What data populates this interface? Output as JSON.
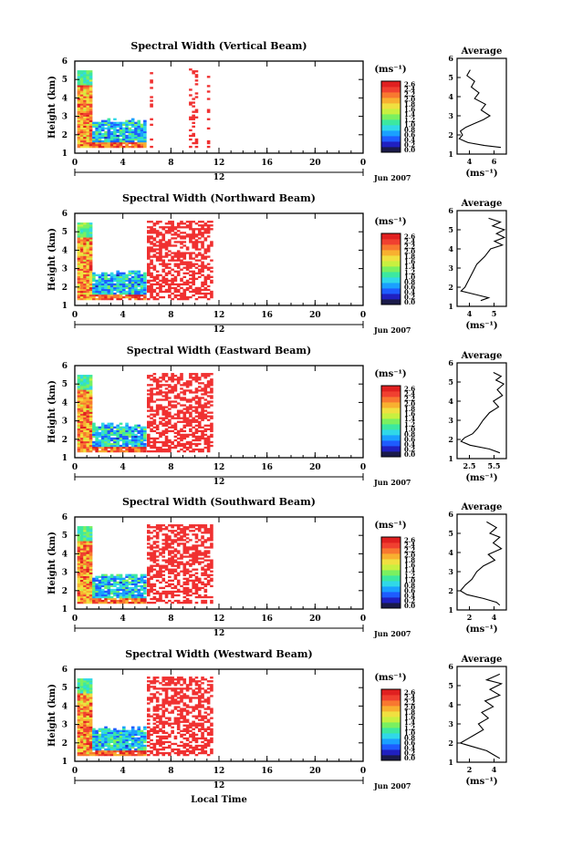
{
  "panels": [
    {
      "title": "Spectral Width (Vertical Beam)",
      "avg_ticks": [
        "4",
        "6"
      ],
      "avg_xlim": [
        3,
        7.5
      ]
    },
    {
      "title": "Spectral Width (Northward Beam)",
      "avg_ticks": [
        "4",
        "5"
      ],
      "avg_xlim": [
        3,
        5.5
      ]
    },
    {
      "title": "Spectral Width (Eastward Beam)",
      "avg_ticks": [
        "2.5",
        "5.5"
      ],
      "avg_xlim": [
        2,
        5.8
      ]
    },
    {
      "title": "Spectral Width (Southward Beam)",
      "avg_ticks": [
        "2",
        "4"
      ],
      "avg_xlim": [
        2,
        5
      ]
    },
    {
      "title": "Spectral Width (Westward Beam)",
      "avg_ticks": [
        "2",
        "4"
      ],
      "avg_xlim": [
        2,
        5
      ]
    }
  ],
  "ylabel": "Height (km)",
  "xlabel": "Local Time",
  "date_label": "Jun 2007",
  "noon_label": "12",
  "colorbar_unit": "(ms⁻¹)",
  "avg_unit": "(ms⁻¹)",
  "avg_title": "Average",
  "chart_data": {
    "type": "heatmap",
    "x_ticks": [
      "0",
      "4",
      "8",
      "12",
      "16",
      "20",
      "0"
    ],
    "y_ticks": [
      "1",
      "2",
      "3",
      "4",
      "5",
      "6"
    ],
    "xlim": [
      0,
      24
    ],
    "ylim": [
      1,
      6
    ],
    "colorbar_ticks": [
      "2.6",
      "2.4",
      "2.2",
      "2.0",
      "1.8",
      "1.6",
      "1.4",
      "1.2",
      "1.0",
      "0.8",
      "0.6",
      "0.4",
      "0.2",
      "0.0"
    ],
    "colorbar_range": [
      0,
      2.6
    ],
    "colorbar_colors": [
      "#1a1a4a",
      "#2020c0",
      "#1e5cff",
      "#1aa0ff",
      "#30d8e8",
      "#3ce8a0",
      "#7af060",
      "#c8f040",
      "#f0e040",
      "#f8b030",
      "#f87830",
      "#f04030",
      "#e02020"
    ],
    "average_profiles": [
      {
        "beam": "Vertical",
        "points": [
          [
            4.2,
            5.4
          ],
          [
            3.9,
            5.1
          ],
          [
            4.6,
            4.8
          ],
          [
            4.3,
            4.5
          ],
          [
            5.0,
            4.2
          ],
          [
            4.6,
            3.9
          ],
          [
            5.6,
            3.6
          ],
          [
            5.2,
            3.3
          ],
          [
            6.0,
            3.0
          ],
          [
            5.4,
            2.8
          ],
          [
            4.6,
            2.6
          ],
          [
            3.8,
            2.4
          ],
          [
            3.3,
            2.2
          ],
          [
            3.5,
            2.0
          ],
          [
            3.2,
            1.8
          ],
          [
            4.0,
            1.6
          ],
          [
            5.5,
            1.45
          ],
          [
            7.0,
            1.35
          ]
        ]
      },
      {
        "beam": "Northward",
        "points": [
          [
            4.6,
            5.6
          ],
          [
            5.2,
            5.4
          ],
          [
            4.8,
            5.2
          ],
          [
            5.4,
            5.0
          ],
          [
            5.0,
            4.8
          ],
          [
            5.4,
            4.6
          ],
          [
            4.9,
            4.4
          ],
          [
            5.3,
            4.2
          ],
          [
            4.7,
            4.0
          ],
          [
            4.4,
            3.6
          ],
          [
            4.0,
            3.2
          ],
          [
            3.8,
            2.8
          ],
          [
            3.6,
            2.4
          ],
          [
            3.4,
            2.0
          ],
          [
            3.2,
            1.8
          ],
          [
            4.0,
            1.6
          ],
          [
            4.6,
            1.45
          ],
          [
            4.2,
            1.3
          ]
        ]
      },
      {
        "beam": "Eastward",
        "points": [
          [
            4.8,
            5.5
          ],
          [
            5.4,
            5.3
          ],
          [
            5.0,
            5.1
          ],
          [
            5.6,
            4.9
          ],
          [
            5.1,
            4.6
          ],
          [
            5.5,
            4.3
          ],
          [
            4.8,
            4.0
          ],
          [
            5.2,
            3.7
          ],
          [
            4.5,
            3.4
          ],
          [
            4.0,
            3.0
          ],
          [
            3.6,
            2.6
          ],
          [
            3.2,
            2.3
          ],
          [
            2.6,
            2.1
          ],
          [
            2.3,
            1.9
          ],
          [
            3.0,
            1.7
          ],
          [
            4.5,
            1.5
          ],
          [
            5.3,
            1.3
          ]
        ]
      },
      {
        "beam": "Southward",
        "points": [
          [
            3.8,
            5.6
          ],
          [
            4.4,
            5.3
          ],
          [
            4.0,
            5.0
          ],
          [
            4.6,
            4.8
          ],
          [
            4.2,
            4.5
          ],
          [
            4.7,
            4.2
          ],
          [
            3.9,
            3.9
          ],
          [
            4.3,
            3.6
          ],
          [
            3.6,
            3.3
          ],
          [
            3.2,
            3.0
          ],
          [
            2.9,
            2.6
          ],
          [
            2.5,
            2.3
          ],
          [
            2.2,
            2.0
          ],
          [
            2.6,
            1.8
          ],
          [
            3.6,
            1.6
          ],
          [
            4.4,
            1.4
          ],
          [
            4.6,
            1.25
          ]
        ]
      },
      {
        "beam": "Westward",
        "points": [
          [
            4.6,
            5.6
          ],
          [
            3.8,
            5.3
          ],
          [
            4.7,
            5.1
          ],
          [
            4.0,
            4.8
          ],
          [
            4.6,
            4.5
          ],
          [
            3.7,
            4.2
          ],
          [
            4.2,
            3.9
          ],
          [
            3.5,
            3.6
          ],
          [
            3.9,
            3.3
          ],
          [
            3.3,
            3.0
          ],
          [
            3.6,
            2.7
          ],
          [
            3.0,
            2.4
          ],
          [
            2.6,
            2.2
          ],
          [
            2.2,
            2.0
          ],
          [
            3.0,
            1.8
          ],
          [
            3.8,
            1.6
          ],
          [
            4.2,
            1.4
          ],
          [
            4.6,
            1.2
          ]
        ]
      }
    ]
  }
}
